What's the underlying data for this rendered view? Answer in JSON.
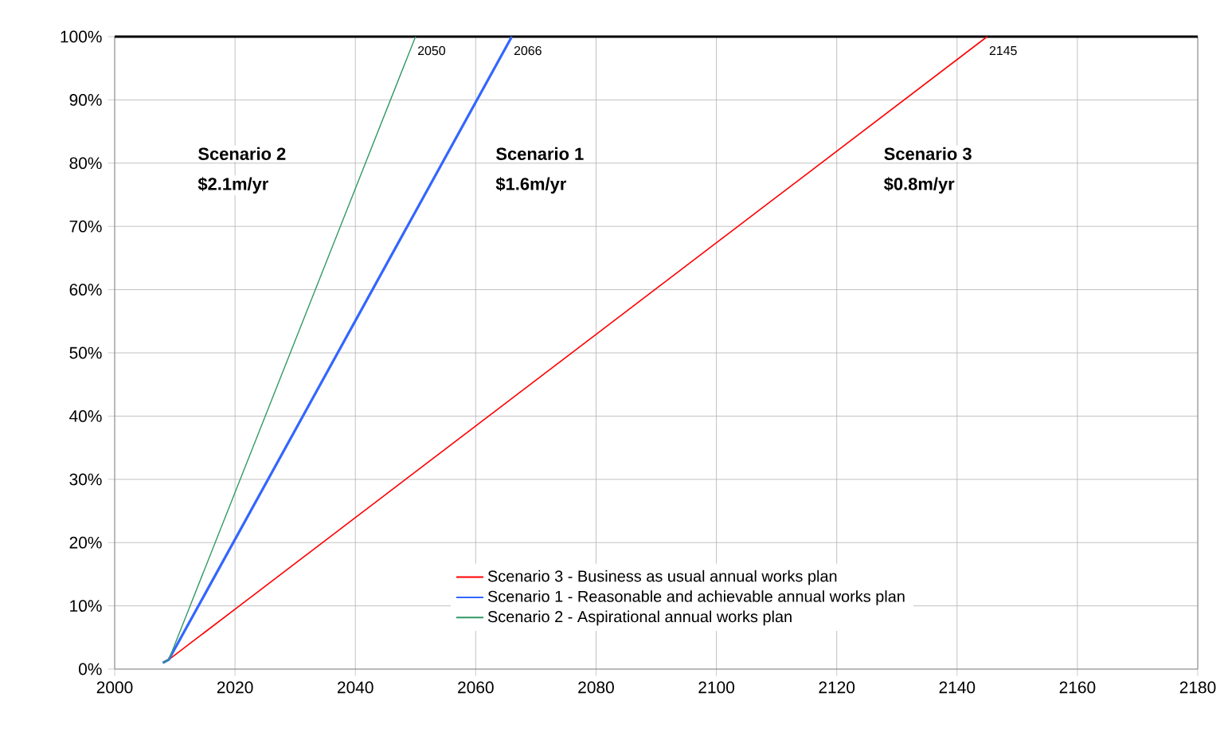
{
  "chart_data": {
    "type": "line",
    "xlim": [
      2000,
      2180
    ],
    "xticks": [
      2000,
      2020,
      2040,
      2060,
      2080,
      2100,
      2120,
      2140,
      2160,
      2180
    ],
    "ylim": [
      0,
      100
    ],
    "yticks": [
      {
        "value": 0,
        "label": "0%"
      },
      {
        "value": 10,
        "label": "10%"
      },
      {
        "value": 20,
        "label": "20%"
      },
      {
        "value": 30,
        "label": "30%"
      },
      {
        "value": 40,
        "label": "40%"
      },
      {
        "value": 50,
        "label": "50%"
      },
      {
        "value": 60,
        "label": "60%"
      },
      {
        "value": 70,
        "label": "70%"
      },
      {
        "value": 80,
        "label": "80%"
      },
      {
        "value": 90,
        "label": "90%"
      },
      {
        "value": 100,
        "label": "100%"
      }
    ],
    "grid": true,
    "legend": "bottom right",
    "marker": "none",
    "line_style": "solid",
    "series": [
      {
        "name": "Scenario 3 - Business as usual annual works plan",
        "color": "#ff0000",
        "x": [
          2009,
          2145
        ],
        "values": [
          1.5,
          100
        ]
      },
      {
        "name": "Scenario 1 - Reasonable and achievable annual works plan",
        "color": "#3366ff",
        "x": [
          2008,
          2009,
          2066
        ],
        "values": [
          1,
          1.5,
          100
        ]
      },
      {
        "name": "Scenario 2 - Aspirational annual works plan",
        "color": "#339966",
        "x": [
          2008,
          2009,
          2050
        ],
        "values": [
          1,
          1.5,
          100
        ]
      }
    ],
    "ref_lines": [
      {
        "axis": "y",
        "value": 100,
        "color": "#000000"
      }
    ],
    "annotations": [
      "**Scenario 2**",
      "**$2.1m/yr**",
      "**Scenario 1**",
      "**$1.6m/yr**",
      "**Scenario 3**",
      "**$0.8m/yr**",
      {
        "text": "2050",
        "x": 2050,
        "y": 100
      },
      {
        "text": "2066",
        "x": 2066,
        "y": 100
      },
      {
        "text": "2145",
        "x": 2145,
        "y": 100
      }
    ]
  }
}
